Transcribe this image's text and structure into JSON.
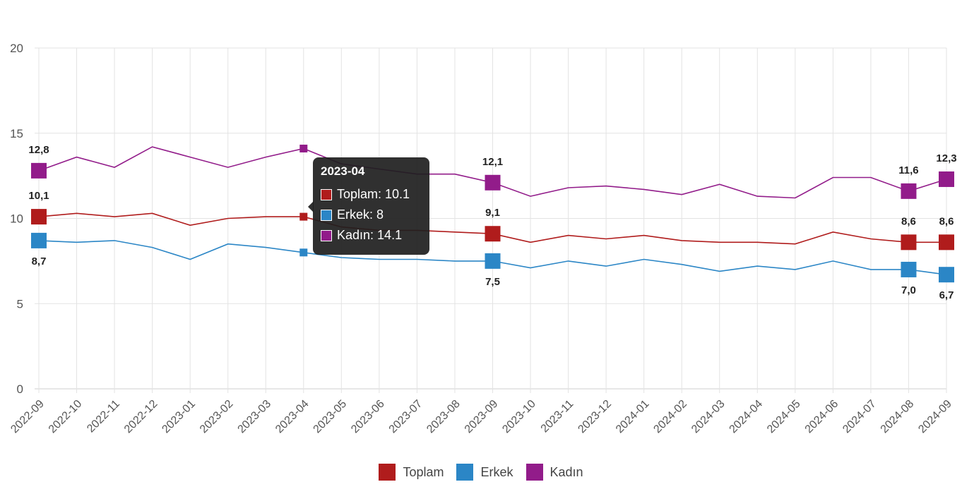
{
  "chart_data": {
    "type": "line",
    "categories": [
      "2022-09",
      "2022-10",
      "2022-11",
      "2022-12",
      "2023-01",
      "2023-02",
      "2023-03",
      "2023-04",
      "2023-05",
      "2023-06",
      "2023-07",
      "2023-08",
      "2023-09",
      "2023-10",
      "2023-11",
      "2023-12",
      "2024-01",
      "2024-02",
      "2024-03",
      "2024-04",
      "2024-05",
      "2024-06",
      "2024-07",
      "2024-08",
      "2024-09"
    ],
    "series": [
      {
        "name": "Toplam",
        "color": "#b01c1c",
        "values": [
          10.1,
          10.3,
          10.1,
          10.3,
          9.6,
          10.0,
          10.1,
          10.1,
          9.5,
          9.3,
          9.3,
          9.2,
          9.1,
          8.6,
          9.0,
          8.8,
          9.0,
          8.7,
          8.6,
          8.6,
          8.5,
          9.2,
          8.8,
          8.6,
          8.6
        ]
      },
      {
        "name": "Erkek",
        "color": "#2b86c6",
        "values": [
          8.7,
          8.6,
          8.7,
          8.3,
          7.6,
          8.5,
          8.3,
          8.0,
          7.7,
          7.6,
          7.6,
          7.5,
          7.5,
          7.1,
          7.5,
          7.2,
          7.6,
          7.3,
          6.9,
          7.2,
          7.0,
          7.5,
          7.0,
          7.0,
          6.7
        ]
      },
      {
        "name": "Kadın",
        "color": "#921c8a",
        "values": [
          12.8,
          13.6,
          13.0,
          14.2,
          13.6,
          13.0,
          13.6,
          14.1,
          13.2,
          12.9,
          12.6,
          12.6,
          12.1,
          11.3,
          11.8,
          11.9,
          11.7,
          11.4,
          12.0,
          11.3,
          11.2,
          12.4,
          12.4,
          11.6,
          12.3
        ]
      }
    ],
    "highlight_indices": [
      0,
      12,
      23,
      24
    ],
    "data_labels": [
      {
        "series": 0,
        "index": 0,
        "text": "10,1",
        "pos": "above"
      },
      {
        "series": 1,
        "index": 0,
        "text": "8,7",
        "pos": "below"
      },
      {
        "series": 2,
        "index": 0,
        "text": "12,8",
        "pos": "above"
      },
      {
        "series": 0,
        "index": 12,
        "text": "9,1",
        "pos": "above"
      },
      {
        "series": 1,
        "index": 12,
        "text": "7,5",
        "pos": "below"
      },
      {
        "series": 2,
        "index": 12,
        "text": "12,1",
        "pos": "above"
      },
      {
        "series": 0,
        "index": 23,
        "text": "8,6",
        "pos": "above"
      },
      {
        "series": 1,
        "index": 23,
        "text": "7,0",
        "pos": "below"
      },
      {
        "series": 2,
        "index": 23,
        "text": "11,6",
        "pos": "above"
      },
      {
        "series": 0,
        "index": 24,
        "text": "8,6",
        "pos": "above"
      },
      {
        "series": 1,
        "index": 24,
        "text": "6,7",
        "pos": "below"
      },
      {
        "series": 2,
        "index": 24,
        "text": "12,3",
        "pos": "above"
      }
    ],
    "ylim": [
      0,
      20
    ],
    "yticks": [
      0,
      5,
      10,
      15,
      20
    ],
    "grid": true,
    "legend_position": "bottom",
    "title": "",
    "xlabel": "",
    "ylabel": ""
  },
  "tooltip": {
    "category_index": 7,
    "title": "2023-04",
    "rows": [
      {
        "label": "Toplam: 10.1",
        "color": "#b01c1c"
      },
      {
        "label": "Erkek: 8",
        "color": "#2b86c6"
      },
      {
        "label": "Kadın: 14.1",
        "color": "#921c8a"
      }
    ]
  },
  "legend": [
    {
      "label": "Toplam",
      "color": "#b01c1c"
    },
    {
      "label": "Erkek",
      "color": "#2b86c6"
    },
    {
      "label": "Kadın",
      "color": "#921c8a"
    }
  ]
}
